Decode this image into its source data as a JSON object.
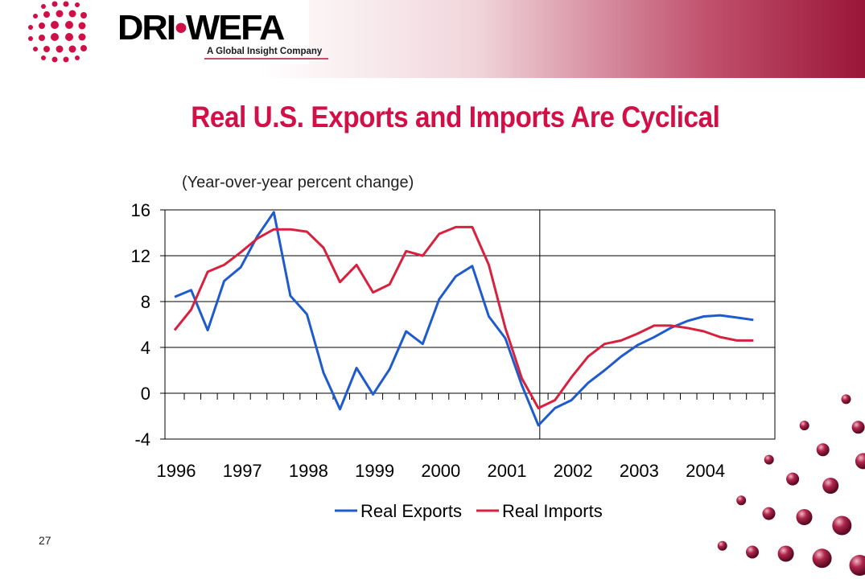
{
  "slide": {
    "logo_main": "DRI",
    "logo_dot": "•",
    "logo_second": "WEFA",
    "logo_tagline": "A Global Insight Company",
    "title": "Real U.S. Exports and Imports Are Cyclical",
    "page_number": "27",
    "accent_color": "#d11048"
  },
  "chart_data": {
    "type": "line",
    "subtitle": "(Year-over-year percent change)",
    "x_tick_labels": [
      "1996",
      "1997",
      "1998",
      "1999",
      "2000",
      "2001",
      "2002",
      "2003",
      "2004"
    ],
    "x_start_year": 1996,
    "quarters_per_year": 4,
    "ylim": [
      -4,
      16
    ],
    "yticks": [
      -4,
      0,
      4,
      8,
      12,
      16
    ],
    "grid": true,
    "legend_position": "bottom",
    "series": [
      {
        "name": "Real Exports",
        "color": "#1f5bcc",
        "values": [
          8.4,
          9.0,
          5.5,
          9.8,
          11.0,
          13.7,
          15.8,
          8.5,
          6.9,
          1.8,
          -1.4,
          2.2,
          -0.1,
          2.1,
          5.4,
          4.3,
          8.2,
          10.2,
          11.1,
          6.7,
          4.8,
          0.7,
          -2.8,
          -1.3,
          -0.6,
          0.9,
          2.0,
          3.2,
          4.2,
          4.9,
          5.7,
          6.3,
          6.7,
          6.8,
          6.6,
          6.4
        ]
      },
      {
        "name": "Real Imports",
        "color": "#d6213f",
        "values": [
          5.5,
          7.3,
          10.6,
          11.2,
          12.3,
          13.5,
          14.3,
          14.3,
          14.1,
          12.7,
          9.7,
          11.2,
          8.8,
          9.5,
          12.4,
          12.0,
          13.9,
          14.5,
          14.5,
          11.2,
          5.7,
          1.3,
          -1.3,
          -0.6,
          1.4,
          3.2,
          4.3,
          4.6,
          5.2,
          5.9,
          5.9,
          5.7,
          5.4,
          4.9,
          4.6,
          4.6
        ]
      }
    ]
  }
}
